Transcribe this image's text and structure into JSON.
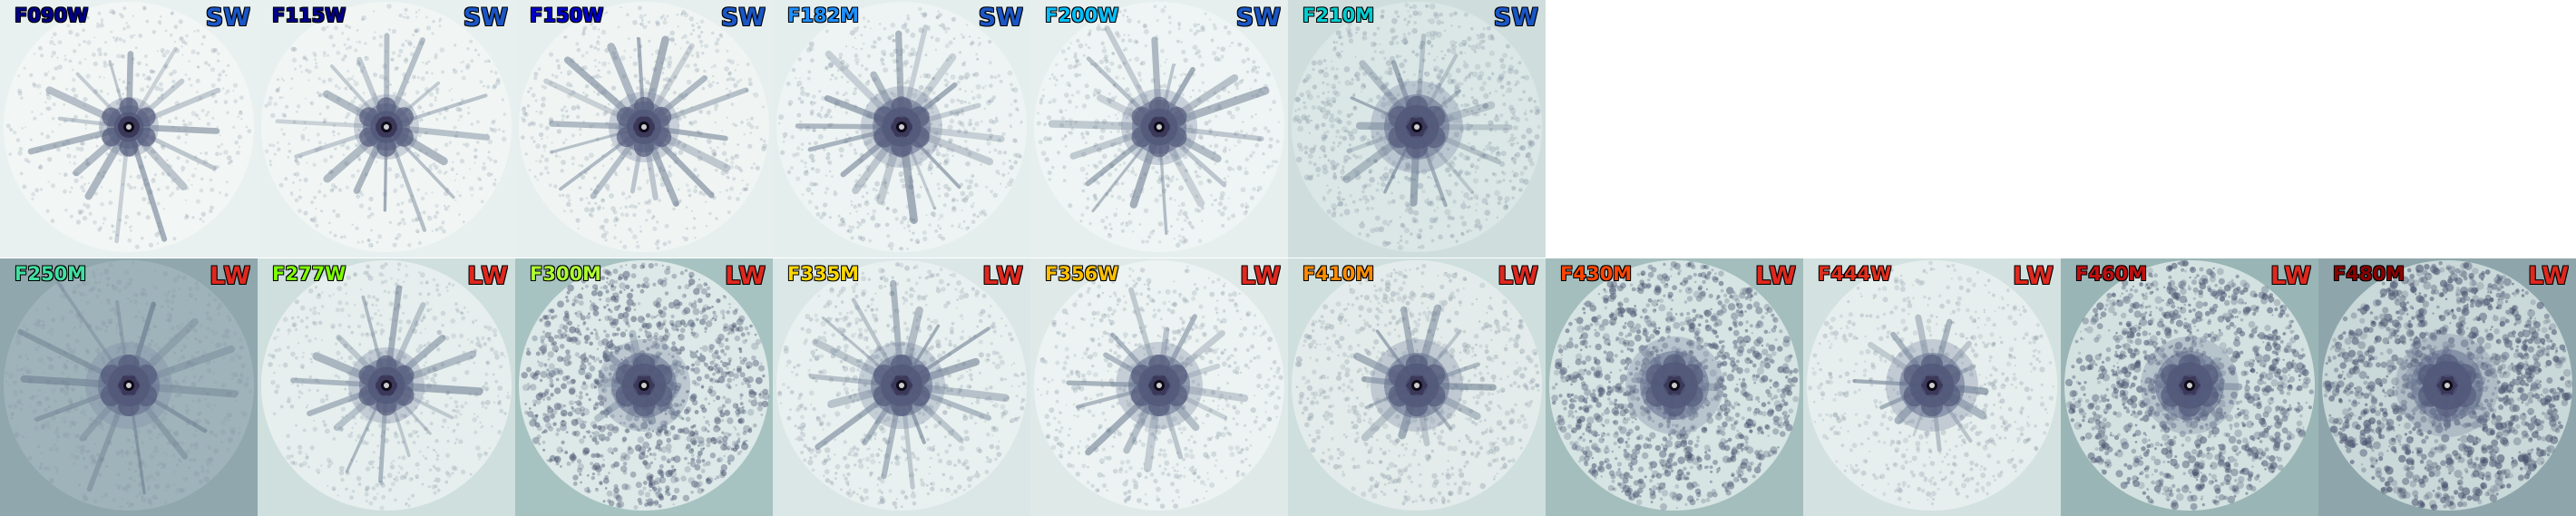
{
  "panels": [
    {
      "filter": "F090W",
      "module": "SW",
      "color": "#00008b",
      "modcolor": "#1a56c7",
      "bg": "#e9f1f0",
      "disk": "#f2f6f5",
      "noise": 0.18,
      "spikes": 16,
      "spikeLen": 0.95,
      "blob": 0.25
    },
    {
      "filter": "F115W",
      "module": "SW",
      "color": "#00008b",
      "modcolor": "#1a56c7",
      "bg": "#e8f0ef",
      "disk": "#f1f6f5",
      "noise": 0.2,
      "spikes": 16,
      "spikeLen": 0.95,
      "blob": 0.3
    },
    {
      "filter": "F150W",
      "module": "SW",
      "color": "#0000cd",
      "modcolor": "#1a56c7",
      "bg": "#e6efee",
      "disk": "#f0f5f4",
      "noise": 0.25,
      "spikes": 18,
      "spikeLen": 0.9,
      "blob": 0.35
    },
    {
      "filter": "F182M",
      "module": "SW",
      "color": "#1e90ff",
      "modcolor": "#1a56c7",
      "bg": "#e4eeed",
      "disk": "#eef4f3",
      "noise": 0.3,
      "spikes": 18,
      "spikeLen": 0.85,
      "blob": 0.45
    },
    {
      "filter": "F200W",
      "module": "SW",
      "color": "#00bfff",
      "modcolor": "#1a56c7",
      "bg": "#e6efee",
      "disk": "#eff5f4",
      "noise": 0.25,
      "spikes": 18,
      "spikeLen": 0.9,
      "blob": 0.4
    },
    {
      "filter": "F210M",
      "module": "SW",
      "color": "#00ced1",
      "modcolor": "#1a56c7",
      "bg": "#cfdedd",
      "disk": "#dbe7e6",
      "noise": 0.45,
      "spikes": 16,
      "spikeLen": 0.8,
      "blob": 0.55
    },
    {
      "filter": "F250M",
      "module": "LW",
      "color": "#40e0a0",
      "modcolor": "#e0281e",
      "bg": "#8fa7ad",
      "disk": "#9fb4ba",
      "noise": 0.35,
      "spikes": 14,
      "spikeLen": 1.0,
      "blob": 0.5
    },
    {
      "filter": "F277W",
      "module": "LW",
      "color": "#7fff00",
      "modcolor": "#e0281e",
      "bg": "#cfdfdd",
      "disk": "#e6efee",
      "noise": 0.25,
      "spikes": 16,
      "spikeLen": 0.85,
      "blob": 0.4
    },
    {
      "filter": "F300M",
      "module": "LW",
      "color": "#adff2f",
      "modcolor": "#e0281e",
      "bg": "#a6c3c1",
      "disk": "#dde9e8",
      "noise": 0.7,
      "spikes": 10,
      "spikeLen": 0.5,
      "blob": 0.55
    },
    {
      "filter": "F335M",
      "module": "LW",
      "color": "#ffd700",
      "modcolor": "#e0281e",
      "bg": "#dbe7e6",
      "disk": "#e9f1f0",
      "noise": 0.35,
      "spikes": 18,
      "spikeLen": 0.85,
      "blob": 0.5
    },
    {
      "filter": "F356W",
      "module": "LW",
      "color": "#ffc000",
      "modcolor": "#e0281e",
      "bg": "#dfe9e8",
      "disk": "#ecf3f2",
      "noise": 0.3,
      "spikes": 16,
      "spikeLen": 0.8,
      "blob": 0.5
    },
    {
      "filter": "F410M",
      "module": "LW",
      "color": "#ff8c00",
      "modcolor": "#e0281e",
      "bg": "#cfdfdd",
      "disk": "#e3ecea",
      "noise": 0.4,
      "spikes": 14,
      "spikeLen": 0.65,
      "blob": 0.55
    },
    {
      "filter": "F430M",
      "module": "LW",
      "color": "#ff4500",
      "modcolor": "#e0281e",
      "bg": "#a3bebd",
      "disk": "#d6e4e3",
      "noise": 0.75,
      "spikes": 8,
      "spikeLen": 0.45,
      "blob": 0.6
    },
    {
      "filter": "F444W",
      "module": "LW",
      "color": "#e0301e",
      "modcolor": "#e0281e",
      "bg": "#d3e2e0",
      "disk": "#e7efee",
      "noise": 0.3,
      "spikes": 14,
      "spikeLen": 0.65,
      "blob": 0.55
    },
    {
      "filter": "F460M",
      "module": "LW",
      "color": "#c01010",
      "modcolor": "#e0281e",
      "bg": "#9ab5b5",
      "disk": "#d3e2e1",
      "noise": 0.8,
      "spikes": 8,
      "spikeLen": 0.4,
      "blob": 0.6
    },
    {
      "filter": "F480M",
      "module": "LW",
      "color": "#8b0000",
      "modcolor": "#e0281e",
      "bg": "#8ea6ab",
      "disk": "#c9d8d8",
      "noise": 0.9,
      "spikes": 8,
      "spikeLen": 0.35,
      "blob": 0.65
    }
  ]
}
